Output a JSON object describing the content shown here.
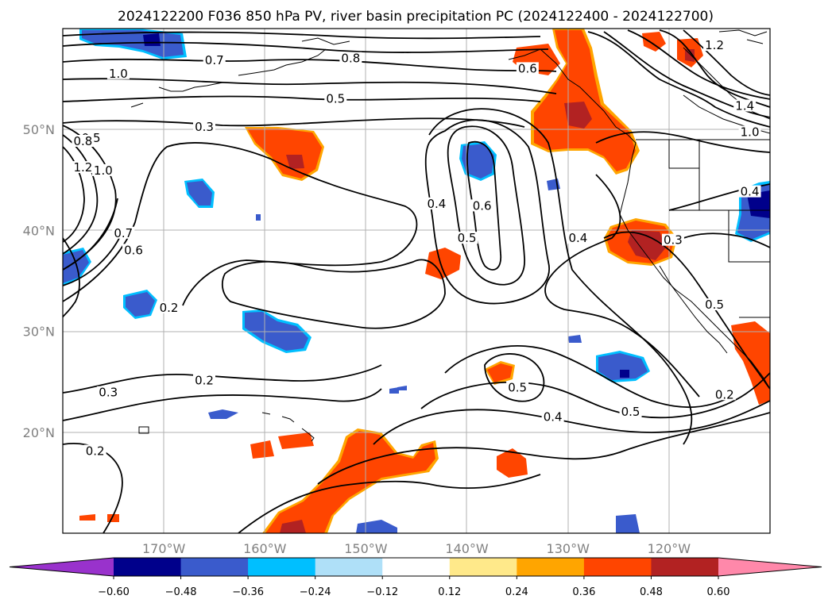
{
  "title": "2024122200 F036 850 hPa PV, river basin precipitation PC (2024122400 - 2024122700)",
  "map": {
    "lon_range": [
      -180,
      -110
    ],
    "lat_range": [
      10,
      60
    ],
    "lat_labels": [
      {
        "lat": 50,
        "text": "50°N"
      },
      {
        "lat": 40,
        "text": "40°N"
      },
      {
        "lat": 30,
        "text": "30°N"
      },
      {
        "lat": 20,
        "text": "20°N"
      }
    ],
    "lon_labels": [
      {
        "lon": -170,
        "text": "170°W"
      },
      {
        "lon": -160,
        "text": "160°W"
      },
      {
        "lon": -150,
        "text": "150°W"
      },
      {
        "lon": -140,
        "text": "140°W"
      },
      {
        "lon": -130,
        "text": "130°W"
      },
      {
        "lon": -120,
        "text": "120°W"
      }
    ],
    "contour_labels": [
      {
        "lon": -165,
        "lat": 56.6,
        "text": "0.7"
      },
      {
        "lon": -174.5,
        "lat": 55.3,
        "text": "1.0"
      },
      {
        "lon": -151.5,
        "lat": 56.8,
        "text": "0.8"
      },
      {
        "lon": -153,
        "lat": 52.8,
        "text": "0.5"
      },
      {
        "lon": -134,
        "lat": 55.8,
        "text": "0.6"
      },
      {
        "lon": -115.5,
        "lat": 58.1,
        "text": "1.2"
      },
      {
        "lon": -112.5,
        "lat": 52.1,
        "text": "1.4"
      },
      {
        "lon": -112,
        "lat": 49.5,
        "text": "1.0"
      },
      {
        "lon": -166,
        "lat": 50.0,
        "text": "0.3"
      },
      {
        "lon": -177.2,
        "lat": 48.9,
        "text": "0.5"
      },
      {
        "lon": -178,
        "lat": 48.6,
        "text": "0.8"
      },
      {
        "lon": -178,
        "lat": 46.0,
        "text": "1.2"
      },
      {
        "lon": -176,
        "lat": 45.7,
        "text": "1.0"
      },
      {
        "lon": -174,
        "lat": 39.5,
        "text": "0.7"
      },
      {
        "lon": -173,
        "lat": 37.8,
        "text": "0.6"
      },
      {
        "lon": -169.5,
        "lat": 32.1,
        "text": "0.2"
      },
      {
        "lon": -143.0,
        "lat": 42.4,
        "text": "0.4"
      },
      {
        "lon": -138.5,
        "lat": 42.2,
        "text": "0.6"
      },
      {
        "lon": -140.0,
        "lat": 39.0,
        "text": "0.5"
      },
      {
        "lon": -129.0,
        "lat": 39.0,
        "text": "0.4"
      },
      {
        "lon": -119.6,
        "lat": 38.8,
        "text": "0.3"
      },
      {
        "lon": -112,
        "lat": 43.6,
        "text": "0.4"
      },
      {
        "lon": -115.5,
        "lat": 32.4,
        "text": "0.5"
      },
      {
        "lon": -135.0,
        "lat": 24.2,
        "text": "0.5"
      },
      {
        "lon": -131.5,
        "lat": 21.3,
        "text": "0.4"
      },
      {
        "lon": -123.8,
        "lat": 21.8,
        "text": "0.5"
      },
      {
        "lon": -114.5,
        "lat": 23.5,
        "text": "0.2"
      },
      {
        "lon": -166,
        "lat": 24.9,
        "text": "0.2"
      },
      {
        "lon": -175.5,
        "lat": 23.7,
        "text": "0.3"
      },
      {
        "lon": -176.8,
        "lat": 17.9,
        "text": "0.2"
      }
    ],
    "contour_color": "#000000",
    "grid_color": "#b0b0b0"
  },
  "colorbar": {
    "ticks": [
      "−0.60",
      "−0.48",
      "−0.36",
      "−0.24",
      "−0.12",
      "0.12",
      "0.24",
      "0.36",
      "0.48",
      "0.60"
    ],
    "under_color": "#9932cc",
    "over_color": "#ff88aa",
    "colors": [
      "#00008b",
      "#3a5bcc",
      "#00bfff",
      "#afe0f8",
      "#ffffff",
      "#ffe98a",
      "#ffa500",
      "#ff4500",
      "#b22222"
    ]
  }
}
